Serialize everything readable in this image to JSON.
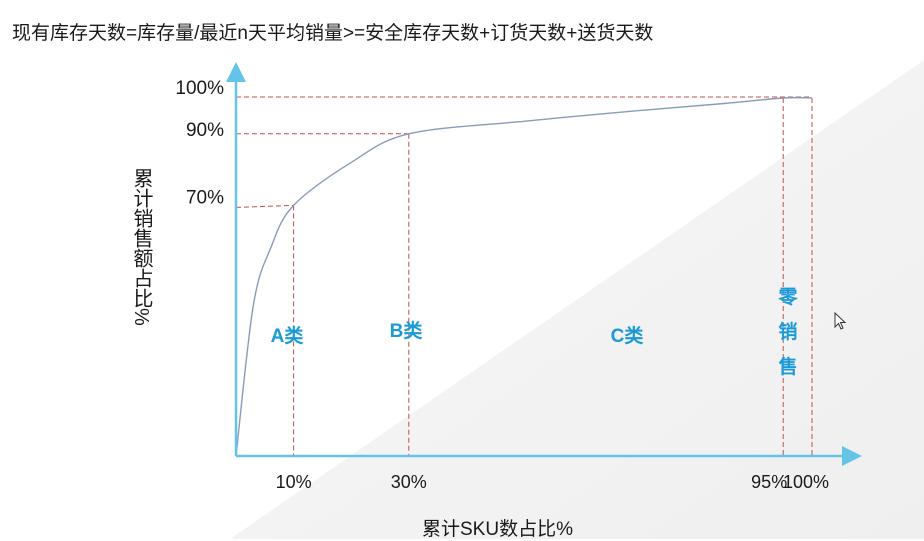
{
  "formula": "现有库存天数=库存量/最近n天平均销量>=安全库存天数+订货天数+送货天数",
  "chart_data": {
    "type": "line",
    "xlabel": "累计SKU数占比%",
    "ylabel": "累计销售额占比%",
    "x_ticks": [
      "10%",
      "30%",
      "95%",
      "100%"
    ],
    "y_ticks": [
      "100%",
      "90%",
      "70%"
    ],
    "classes": [
      {
        "name": "A类",
        "range": [
          0,
          10
        ]
      },
      {
        "name": "B类",
        "range": [
          10,
          30
        ]
      },
      {
        "name": "C类",
        "range": [
          30,
          95
        ]
      },
      {
        "name": "零销售",
        "range": [
          95,
          100
        ]
      }
    ],
    "series": [
      {
        "x": [
          0,
          3,
          6,
          10,
          20,
          30,
          50,
          70,
          85,
          95,
          100
        ],
        "y": [
          0,
          42,
          58,
          70,
          82,
          90,
          93.5,
          96.5,
          98.5,
          100,
          100
        ]
      }
    ],
    "colors": {
      "axis": "#64c4e8",
      "curve": "#8a9bb8",
      "guides": "#c0504d",
      "class_text": "#1a9ad6"
    }
  },
  "cursor_icon": "mouse-pointer-icon"
}
